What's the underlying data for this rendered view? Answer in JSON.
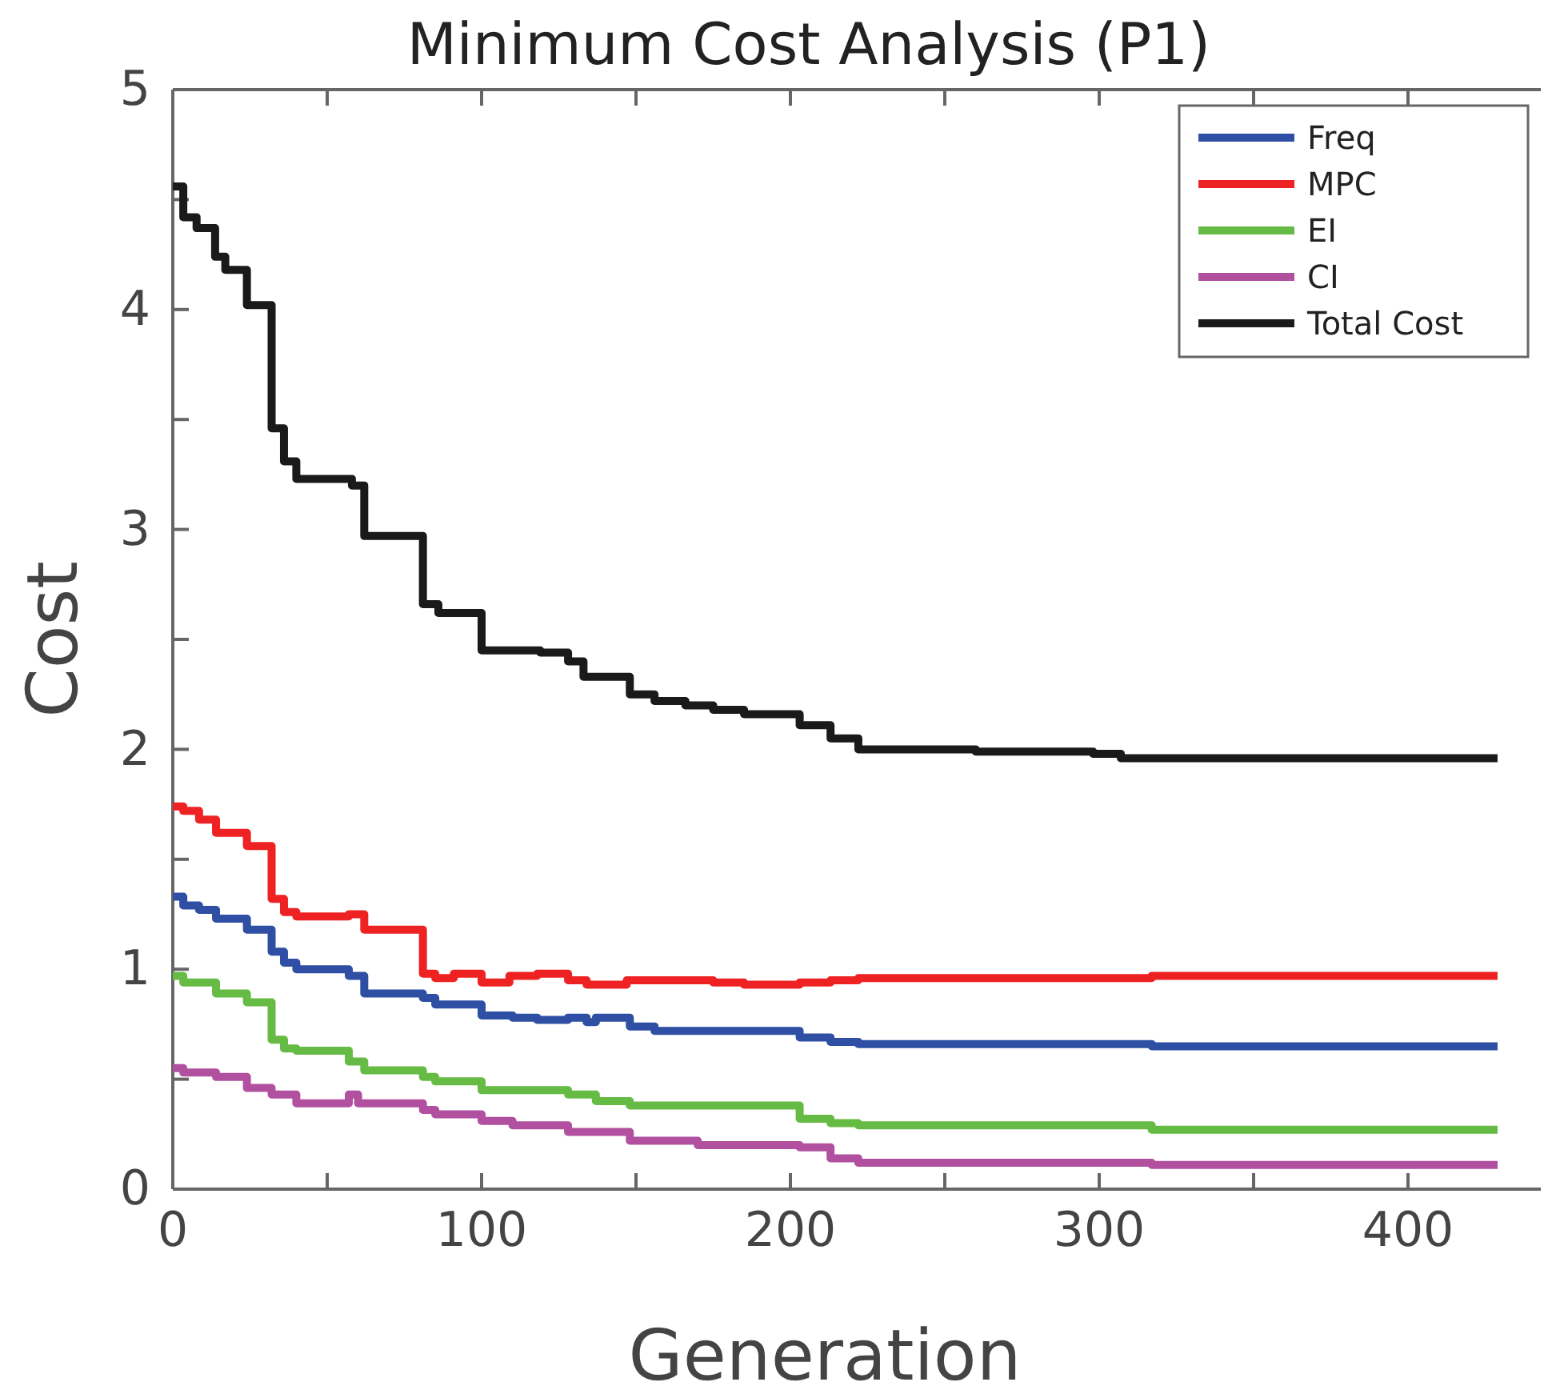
{
  "chart_data": {
    "type": "step",
    "title": "Minimum Cost Analysis (P1)",
    "xlabel": "Generation",
    "ylabel": "Cost",
    "xlim": [
      0,
      443
    ],
    "xticks": [
      0,
      {
        "value": 50,
        "label": null
      },
      100,
      {
        "value": 150,
        "label": null
      },
      200,
      {
        "value": 250,
        "label": null
      },
      300,
      {
        "value": 350,
        "label": null
      },
      400
    ],
    "ylim": [
      0,
      5
    ],
    "yticks": [
      0,
      {
        "value": 0.5,
        "label": null
      },
      1,
      {
        "value": 1.5,
        "label": null
      },
      2,
      {
        "value": 2.5,
        "label": null
      },
      3,
      {
        "value": 3.5,
        "label": null
      },
      4,
      {
        "value": 4.5,
        "label": null
      },
      5
    ],
    "grid": false,
    "legend": "top right",
    "marker": "none",
    "line_style": "solid",
    "series": [
      {
        "name": "Freq",
        "color": "#2e4fa3",
        "x": [
          0,
          3.4,
          8.5,
          14,
          24,
          32,
          36,
          40,
          57,
          62,
          81,
          85,
          100,
          110,
          118,
          128,
          134,
          137,
          148,
          156,
          170,
          203,
          213,
          222,
          260,
          317,
          429
        ],
        "values": [
          1.33,
          1.29,
          1.27,
          1.23,
          1.18,
          1.08,
          1.03,
          1.0,
          0.97,
          0.89,
          0.87,
          0.84,
          0.79,
          0.78,
          0.77,
          0.78,
          0.76,
          0.78,
          0.74,
          0.72,
          0.72,
          0.69,
          0.67,
          0.66,
          0.66,
          0.65,
          0.65
        ]
      },
      {
        "name": "MPC",
        "color": "#ee2222",
        "x": [
          0,
          3.4,
          8.5,
          14,
          24,
          32,
          36,
          40,
          57,
          62,
          81,
          85,
          91,
          100,
          109,
          118,
          128,
          134,
          147,
          175,
          185,
          203,
          213,
          222,
          317,
          429
        ],
        "values": [
          1.74,
          1.72,
          1.68,
          1.62,
          1.56,
          1.32,
          1.26,
          1.24,
          1.25,
          1.18,
          0.98,
          0.96,
          0.98,
          0.94,
          0.97,
          0.98,
          0.95,
          0.93,
          0.95,
          0.94,
          0.93,
          0.94,
          0.95,
          0.96,
          0.97,
          0.97
        ]
      },
      {
        "name": "EI",
        "color": "#66bb44",
        "x": [
          0,
          3.4,
          14,
          24,
          32,
          36,
          40,
          57,
          62,
          81,
          85,
          100,
          128,
          137,
          148,
          203,
          213,
          222,
          317,
          429
        ],
        "values": [
          0.97,
          0.94,
          0.89,
          0.85,
          0.68,
          0.64,
          0.63,
          0.58,
          0.54,
          0.51,
          0.49,
          0.45,
          0.43,
          0.4,
          0.38,
          0.32,
          0.3,
          0.29,
          0.27,
          0.27
        ]
      },
      {
        "name": "CI",
        "color": "#b0509f",
        "x": [
          0,
          3.4,
          14,
          24,
          32,
          40,
          57,
          60,
          81,
          85,
          100,
          110,
          128,
          148,
          170,
          203,
          213,
          222,
          317,
          429
        ],
        "values": [
          0.55,
          0.53,
          0.51,
          0.46,
          0.43,
          0.39,
          0.43,
          0.39,
          0.36,
          0.34,
          0.31,
          0.29,
          0.26,
          0.22,
          0.2,
          0.19,
          0.14,
          0.12,
          0.11,
          0.11
        ]
      },
      {
        "name": "Total Cost",
        "color": "#1a1a1a",
        "x": [
          0,
          3.4,
          7.7,
          13.7,
          17,
          24,
          32,
          36,
          40,
          58,
          62,
          81,
          86,
          100,
          119,
          128,
          133,
          148,
          156,
          166,
          175,
          185,
          203,
          213,
          222,
          260,
          298,
          307,
          429
        ],
        "values": [
          4.56,
          4.42,
          4.37,
          4.24,
          4.18,
          4.02,
          3.46,
          3.31,
          3.23,
          3.2,
          2.97,
          2.66,
          2.62,
          2.45,
          2.44,
          2.4,
          2.33,
          2.25,
          2.22,
          2.2,
          2.18,
          2.16,
          2.11,
          2.05,
          2.0,
          1.99,
          1.98,
          1.96,
          1.96
        ]
      }
    ]
  }
}
